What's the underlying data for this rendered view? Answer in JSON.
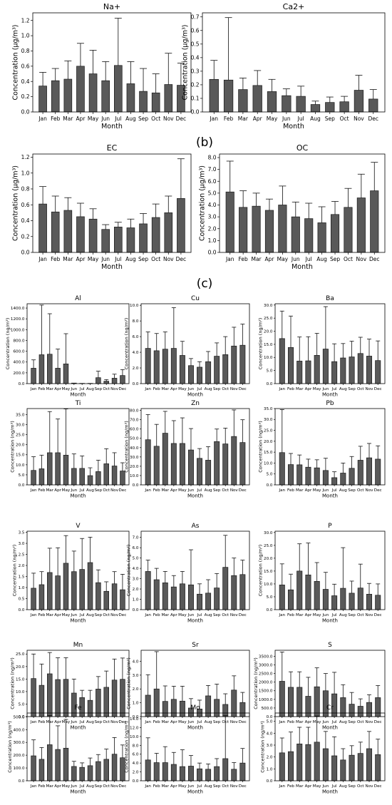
{
  "panel_labels": [
    "(b)",
    "(c)"
  ],
  "chart_data": [
    {
      "type": "bar",
      "title": "Na+",
      "xlabel": "Month",
      "ylabel": "Concentration (µg/m³)",
      "categories": [
        "Jan",
        "Feb",
        "Mar",
        "Apr",
        "May",
        "Jun",
        "Jul",
        "Aug",
        "Sep",
        "Oct",
        "Nov",
        "Dec"
      ],
      "values": [
        0.34,
        0.41,
        0.43,
        0.6,
        0.5,
        0.41,
        0.61,
        0.37,
        0.27,
        0.25,
        0.36,
        0.35
      ],
      "errors": [
        0.18,
        0.16,
        0.24,
        0.3,
        0.31,
        0.25,
        0.62,
        0.29,
        0.3,
        0.25,
        0.41,
        0.29
      ],
      "ylim": [
        0,
        1.3
      ],
      "yticks": [
        0,
        0.2,
        0.4,
        0.6,
        0.8,
        1.0,
        1.2
      ],
      "ytick_labels": [
        "0.0",
        "0.2",
        "0.4",
        "0.6",
        "0.8",
        "1.0",
        "1.2"
      ],
      "grid": false
    },
    {
      "type": "bar",
      "title": "Ca2+",
      "xlabel": "Month",
      "ylabel": "Concentration (µg/m³)",
      "categories": [
        "Jan",
        "Feb",
        "Mar",
        "Apr",
        "May",
        "Jun",
        "Jul",
        "Aug",
        "Sep",
        "Oct",
        "Nov",
        "Dec"
      ],
      "values": [
        0.24,
        0.235,
        0.165,
        0.195,
        0.15,
        0.12,
        0.115,
        0.055,
        0.07,
        0.075,
        0.16,
        0.095
      ],
      "errors": [
        0.14,
        0.46,
        0.085,
        0.11,
        0.09,
        0.05,
        0.075,
        0.025,
        0.04,
        0.04,
        0.11,
        0.07
      ],
      "ylim": [
        0,
        0.73
      ],
      "yticks": [
        0,
        0.1,
        0.2,
        0.3,
        0.4,
        0.5,
        0.6,
        0.7
      ],
      "ytick_labels": [
        "0.0",
        "0.1",
        "0.2",
        "0.3",
        "0.4",
        "0.5",
        "0.6",
        "0.7"
      ],
      "grid": false
    },
    {
      "type": "bar",
      "title": "EC",
      "xlabel": "Month",
      "ylabel": "Concentration (µg/m³)",
      "categories": [
        "Jan",
        "Feb",
        "Mar",
        "Apr",
        "May",
        "Jun",
        "Jul",
        "Aug",
        "Sep",
        "Oct",
        "Nov",
        "Dec"
      ],
      "values": [
        0.61,
        0.51,
        0.53,
        0.45,
        0.42,
        0.29,
        0.32,
        0.31,
        0.36,
        0.44,
        0.5,
        0.68
      ],
      "errors": [
        0.22,
        0.2,
        0.16,
        0.17,
        0.13,
        0.06,
        0.06,
        0.11,
        0.13,
        0.17,
        0.21,
        0.5
      ],
      "ylim": [
        0,
        1.24
      ],
      "yticks": [
        0,
        0.2,
        0.4,
        0.6,
        0.8,
        1.0,
        1.2
      ],
      "ytick_labels": [
        "0.0",
        "0.2",
        "0.4",
        "0.6",
        "0.8",
        "1.0",
        "1.2"
      ],
      "grid": false
    },
    {
      "type": "bar",
      "title": "OC",
      "xlabel": "Month",
      "ylabel": "Concentration (µg/m³)",
      "categories": [
        "Jan",
        "Feb",
        "Mar",
        "Apr",
        "May",
        "Jun",
        "Jul",
        "Aug",
        "Sep",
        "Oct",
        "Nov",
        "Dec"
      ],
      "values": [
        5.1,
        3.8,
        3.9,
        3.55,
        4.0,
        3.0,
        2.85,
        2.5,
        3.2,
        3.8,
        4.6,
        5.2
      ],
      "errors": [
        2.6,
        1.4,
        1.1,
        0.95,
        1.6,
        1.25,
        1.3,
        1.35,
        1.1,
        1.6,
        2.0,
        2.4
      ],
      "ylim": [
        0,
        8.3
      ],
      "yticks": [
        0,
        1,
        2,
        3,
        4,
        5,
        6,
        7,
        8
      ],
      "ytick_labels": [
        "0.0",
        "1.0",
        "2.0",
        "3.0",
        "4.0",
        "5.0",
        "6.0",
        "7.0",
        "8.0"
      ],
      "grid": false
    },
    {
      "type": "bar",
      "title": "Al",
      "xlabel": "Month",
      "ylabel": "Concentration (ng/m³)",
      "categories": [
        "Jan",
        "Feb",
        "Mar",
        "Apr",
        "May",
        "Jun",
        "Jul",
        "Aug",
        "Sep",
        "Oct",
        "Nov",
        "Dec"
      ],
      "values": [
        285,
        535,
        545,
        285,
        365,
        10,
        5,
        5,
        110,
        45,
        100,
        150
      ],
      "errors": [
        155,
        920,
        750,
        355,
        560,
        0,
        0,
        0,
        120,
        30,
        75,
        110
      ],
      "ylim": [
        0,
        1480
      ],
      "yticks": [
        0,
        200,
        400,
        600,
        800,
        1000,
        1200,
        1400
      ],
      "ytick_labels": [
        "0.0",
        "200.0",
        "400.0",
        "600.0",
        "800.0",
        "1000.0",
        "1200.0",
        "1400.0"
      ],
      "grid": false
    },
    {
      "type": "bar",
      "title": "Cu",
      "xlabel": "Month",
      "ylabel": "Concentration (ng/m³)",
      "categories": [
        "Jan",
        "Feb",
        "Mar",
        "Apr",
        "May",
        "Jun",
        "Jul",
        "Aug",
        "Sep",
        "Oct",
        "Nov",
        "Dec"
      ],
      "values": [
        4.5,
        4.2,
        4.4,
        4.5,
        3.6,
        2.3,
        2.1,
        2.8,
        3.5,
        3.7,
        4.8,
        4.9
      ],
      "errors": [
        2.1,
        2.2,
        2.2,
        5.2,
        1.8,
        0.9,
        0.7,
        1.3,
        1.7,
        2.3,
        2.4,
        2.7
      ],
      "ylim": [
        0,
        10.2
      ],
      "yticks": [
        0,
        2,
        4,
        6,
        8,
        10
      ],
      "ytick_labels": [
        "0.0",
        "2.0",
        "4.0",
        "6.0",
        "8.0",
        "10.0"
      ],
      "grid": false
    },
    {
      "type": "bar",
      "title": "Ba",
      "xlabel": "Month",
      "ylabel": "Concentration (ng/m³)",
      "categories": [
        "Jan",
        "Feb",
        "Mar",
        "Apr",
        "May",
        "Jun",
        "Jul",
        "Aug",
        "Sep",
        "Oct",
        "Nov",
        "Dec"
      ],
      "values": [
        17.2,
        13.8,
        8.6,
        8.7,
        10.8,
        13.2,
        8.4,
        9.8,
        10.2,
        11.5,
        10.5,
        8.8
      ],
      "errors": [
        10.5,
        12.0,
        9.2,
        9.2,
        8.4,
        16.2,
        6.8,
        5.5,
        6.0,
        6.2,
        6.5,
        7.5
      ],
      "ylim": [
        0,
        30.5
      ],
      "yticks": [
        0,
        5,
        10,
        15,
        20,
        25,
        30
      ],
      "ytick_labels": [
        "0.0",
        "5.0",
        "10.0",
        "15.0",
        "20.0",
        "25.0",
        "30.0"
      ],
      "grid": false
    },
    {
      "type": "bar",
      "title": "Ti",
      "xlabel": "Month",
      "ylabel": "Concentration (ng/m³)",
      "categories": [
        "Jan",
        "Feb",
        "Mar",
        "Apr",
        "May",
        "Jun",
        "Jul",
        "Aug",
        "Sep",
        "Oct",
        "Nov",
        "Dec"
      ],
      "values": [
        7.2,
        8.0,
        16.0,
        16.0,
        14.8,
        8.2,
        8.2,
        4.6,
        6.6,
        10.5,
        9.4,
        6.9
      ],
      "errors": [
        6.8,
        6.8,
        20.5,
        16.8,
        23.0,
        7.2,
        6.2,
        3.9,
        5.7,
        7.5,
        6.6,
        4.1
      ],
      "ylim": [
        0,
        38
      ],
      "yticks": [
        0,
        5,
        10,
        15,
        20,
        25,
        30,
        35
      ],
      "ytick_labels": [
        "0.0",
        "5.0",
        "10.0",
        "15.0",
        "20.0",
        "25.0",
        "30.0",
        "35.0"
      ],
      "grid": false
    },
    {
      "type": "bar",
      "title": "Zn",
      "xlabel": "Month",
      "ylabel": "Concentration (ng/m³)",
      "categories": [
        "Jan",
        "Feb",
        "Mar",
        "Apr",
        "May",
        "Jun",
        "Jul",
        "Aug",
        "Sep",
        "Oct",
        "Nov",
        "Dec"
      ],
      "values": [
        48.5,
        41.5,
        55.5,
        44.5,
        44.5,
        37.5,
        28.5,
        26.5,
        46.5,
        44.0,
        52.0,
        45.5
      ],
      "errors": [
        27.0,
        23.5,
        23.5,
        24.5,
        27.5,
        23.0,
        10.5,
        14.5,
        13.5,
        17.0,
        28.5,
        24.5
      ],
      "ylim": [
        0,
        82
      ],
      "yticks": [
        0,
        10,
        20,
        30,
        40,
        50,
        60,
        70,
        80
      ],
      "ytick_labels": [
        "0.0",
        "10.0",
        "20.0",
        "30.0",
        "40.0",
        "50.0",
        "60.0",
        "70.0",
        "80.0"
      ],
      "grid": false
    },
    {
      "type": "bar",
      "title": "Pb",
      "xlabel": "Month",
      "ylabel": "Concentration (ng/m³)",
      "categories": [
        "Jan",
        "Feb",
        "Mar",
        "Apr",
        "May",
        "Jun",
        "Jul",
        "Aug",
        "Sep",
        "Oct",
        "Nov",
        "Dec"
      ],
      "values": [
        14.8,
        9.3,
        9.2,
        8.1,
        7.8,
        6.6,
        3.3,
        5.4,
        7.6,
        11.3,
        12.4,
        11.8
      ],
      "errors": [
        19.7,
        5.1,
        4.5,
        3.7,
        3.7,
        5.6,
        2.7,
        4.6,
        5.4,
        6.4,
        6.6,
        6.1
      ],
      "ylim": [
        0,
        35
      ],
      "yticks": [
        0,
        5,
        10,
        15,
        20,
        25,
        30,
        35
      ],
      "ytick_labels": [
        "0.0",
        "5.0",
        "10.0",
        "15.0",
        "20.0",
        "25.0",
        "30.0",
        "35.0"
      ],
      "grid": false
    },
    {
      "type": "bar",
      "title": "V",
      "xlabel": "Month",
      "ylabel": "Concentration (ng/m³)",
      "categories": [
        "Jan",
        "Feb",
        "Mar",
        "Apr",
        "May",
        "Jun",
        "Jul",
        "Aug",
        "Sep",
        "Oct",
        "Nov",
        "Dec"
      ],
      "values": [
        0.97,
        1.13,
        1.68,
        1.53,
        2.1,
        1.72,
        1.82,
        2.13,
        1.22,
        0.83,
        1.17,
        0.9
      ],
      "errors": [
        0.68,
        0.59,
        1.1,
        1.27,
        1.25,
        0.93,
        1.4,
        1.15,
        0.58,
        0.43,
        0.55,
        0.7
      ],
      "ylim": [
        0,
        3.55
      ],
      "yticks": [
        0,
        0.5,
        1,
        1.5,
        2,
        2.5,
        3,
        3.5
      ],
      "ytick_labels": [
        "0.0",
        "0.5",
        "1.0",
        "1.5",
        "2.0",
        "2.5",
        "3.0",
        "3.5"
      ],
      "grid": false
    },
    {
      "type": "bar",
      "title": "As",
      "xlabel": "Month",
      "ylabel": "Concentration (ng/m³)",
      "categories": [
        "Jan",
        "Feb",
        "Mar",
        "Apr",
        "May",
        "Jun",
        "Jul",
        "Aug",
        "Sep",
        "Oct",
        "Nov",
        "Dec"
      ],
      "values": [
        3.7,
        2.9,
        2.6,
        2.2,
        2.5,
        2.4,
        1.5,
        1.6,
        2.1,
        4.1,
        3.3,
        3.4
      ],
      "errors": [
        1.1,
        1.1,
        1.1,
        1.1,
        1.2,
        3.4,
        1.0,
        1.3,
        1.4,
        3.1,
        1.7,
        1.4
      ],
      "ylim": [
        0,
        7.6
      ],
      "yticks": [
        0,
        1,
        2,
        3,
        4,
        5,
        6,
        7
      ],
      "ytick_labels": [
        "0.0",
        "1.0",
        "2.0",
        "3.0",
        "4.0",
        "5.0",
        "6.0",
        "7.0"
      ],
      "grid": false
    },
    {
      "type": "bar",
      "title": "P",
      "xlabel": "Month",
      "ylabel": "Concentration (ng/m³)",
      "categories": [
        "Jan",
        "Feb",
        "Mar",
        "Apr",
        "May",
        "Jun",
        "Jul",
        "Aug",
        "Sep",
        "Oct",
        "Nov",
        "Dec"
      ],
      "values": [
        9.6,
        7.7,
        15.0,
        13.5,
        11.0,
        7.9,
        5.4,
        8.3,
        6.4,
        8.4,
        6.0,
        5.6
      ],
      "errors": [
        8.2,
        6.1,
        10.6,
        12.4,
        7.3,
        6.6,
        4.5,
        15.8,
        4.7,
        9.3,
        4.2,
        4.4
      ],
      "ylim": [
        0,
        30.5
      ],
      "yticks": [
        0,
        5,
        10,
        15,
        20,
        25,
        30
      ],
      "ytick_labels": [
        "0.0",
        "5.0",
        "10.0",
        "15.0",
        "20.0",
        "25.0",
        "30.0"
      ],
      "grid": false
    },
    {
      "type": "bar",
      "title": "Mn",
      "xlabel": "Month",
      "ylabel": "Concentration (ng/m³)",
      "categories": [
        "Jan",
        "Feb",
        "Mar",
        "Apr",
        "May",
        "Jun",
        "Jul",
        "Aug",
        "Sep",
        "Oct",
        "Nov",
        "Dec"
      ],
      "values": [
        15.2,
        12.5,
        17.1,
        14.8,
        14.9,
        9.4,
        7.6,
        6.5,
        11.0,
        11.7,
        14.6,
        14.9
      ],
      "errors": [
        9.8,
        8.5,
        8.5,
        8.7,
        8.6,
        5.6,
        2.9,
        4.0,
        5.0,
        6.5,
        8.4,
        8.5
      ],
      "ylim": [
        0,
        26.5
      ],
      "yticks": [
        0,
        5,
        10,
        15,
        20,
        25
      ],
      "ytick_labels": [
        "0.0",
        "5.0",
        "10.0",
        "15.0",
        "20.0",
        "25.0"
      ],
      "grid": false
    },
    {
      "type": "bar",
      "title": "Sr",
      "xlabel": "Month",
      "ylabel": "Concentration (ng/m³)",
      "categories": [
        "Jan",
        "Feb",
        "Mar",
        "Apr",
        "May",
        "Jun",
        "Jul",
        "Aug",
        "Sep",
        "Oct",
        "Nov",
        "Dec"
      ],
      "values": [
        1.55,
        2.0,
        1.1,
        1.25,
        1.12,
        0.62,
        0.55,
        1.5,
        1.25,
        0.88,
        1.92,
        1.02
      ],
      "errors": [
        1.48,
        2.7,
        1.12,
        0.95,
        1.08,
        0.68,
        0.64,
        0.75,
        1.1,
        0.77,
        1.03,
        0.73
      ],
      "ylim": [
        0,
        4.8
      ],
      "yticks": [
        0,
        1,
        2,
        3,
        4
      ],
      "ytick_labels": [
        "0.0",
        "1.0",
        "2.0",
        "3.0",
        "4.0"
      ],
      "grid": false
    },
    {
      "type": "bar",
      "title": "S",
      "xlabel": "Month",
      "ylabel": "Concentration (ng/m³)",
      "categories": [
        "Jan",
        "Feb",
        "Mar",
        "Apr",
        "May",
        "Jun",
        "Jul",
        "Aug",
        "Sep",
        "Oct",
        "Nov",
        "Dec"
      ],
      "values": [
        2050,
        1700,
        1700,
        1180,
        1730,
        1500,
        1320,
        1100,
        720,
        600,
        820,
        1100
      ],
      "errors": [
        1700,
        900,
        900,
        1100,
        1100,
        1000,
        1250,
        750,
        680,
        430,
        450,
        700
      ],
      "ylim": [
        0,
        3850
      ],
      "yticks": [
        0,
        500,
        1000,
        1500,
        2000,
        2500,
        3000,
        3500
      ],
      "ytick_labels": [
        "0.0",
        "500.0",
        "1000.0",
        "1500.0",
        "2000.0",
        "2500.0",
        "3000.0",
        "3500.0"
      ],
      "grid": false
    },
    {
      "type": "bar",
      "title": "Fe",
      "xlabel": "Month",
      "ylabel": "Concentration (ng/m³)",
      "categories": [
        "Jan",
        "Feb",
        "Mar",
        "Apr",
        "May",
        "Jun",
        "Jul",
        "Aug",
        "Sep",
        "Oct",
        "Nov",
        "Dec"
      ],
      "values": [
        195,
        168,
        282,
        245,
        255,
        112,
        105,
        118,
        150,
        168,
        208,
        180
      ],
      "errors": [
        125,
        92,
        228,
        185,
        225,
        40,
        35,
        60,
        55,
        80,
        130,
        100
      ],
      "ylim": [
        0,
        530
      ],
      "yticks": [
        0,
        100,
        200,
        300,
        400,
        500
      ],
      "ytick_labels": [
        "0.0",
        "100.0",
        "200.0",
        "300.0",
        "400.0",
        "500.0"
      ],
      "grid": false
    },
    {
      "type": "bar",
      "title": "Mo",
      "xlabel": "Month",
      "ylabel": "Concentration (ng/m³)",
      "categories": [
        "Jan",
        "Feb",
        "Mar",
        "Apr",
        "May",
        "Jun",
        "Jul",
        "Aug",
        "Sep",
        "Oct",
        "Nov",
        "Dec"
      ],
      "values": [
        4.7,
        4.1,
        4.1,
        3.7,
        3.2,
        3.3,
        2.7,
        2.6,
        3.2,
        5.0,
        2.6,
        4.0
      ],
      "errors": [
        5.0,
        2.1,
        3.6,
        2.7,
        3.8,
        2.4,
        1.3,
        1.2,
        1.8,
        9.7,
        1.5,
        3.3
      ],
      "ylim": [
        0,
        15.3
      ],
      "yticks": [
        0,
        2,
        4,
        6,
        8,
        10,
        12,
        14
      ],
      "ytick_labels": [
        "0.0",
        "2.0",
        "4.0",
        "6.0",
        "8.0",
        "10.0",
        "12.0",
        "14.0"
      ],
      "grid": false
    },
    {
      "type": "bar",
      "title": "Cr",
      "xlabel": "Month",
      "ylabel": "Concentration (ng/m³)",
      "categories": [
        "Jan",
        "Feb",
        "Mar",
        "Apr",
        "May",
        "Jun",
        "Jul",
        "Aug",
        "Sep",
        "Oct",
        "Nov",
        "Dec"
      ],
      "values": [
        2.35,
        2.45,
        3.1,
        3.05,
        3.25,
        2.7,
        2.1,
        1.75,
        2.15,
        2.3,
        2.7,
        2.2
      ],
      "errors": [
        1.25,
        1.65,
        1.4,
        1.45,
        2.2,
        1.45,
        1.6,
        0.95,
        0.8,
        0.95,
        1.45,
        1.3
      ],
      "ylim": [
        0,
        5.7
      ],
      "yticks": [
        0,
        1,
        2,
        3,
        4,
        5
      ],
      "ytick_labels": [
        "0.0",
        "1.0",
        "2.0",
        "3.0",
        "4.0",
        "5.0"
      ],
      "grid": false
    }
  ]
}
